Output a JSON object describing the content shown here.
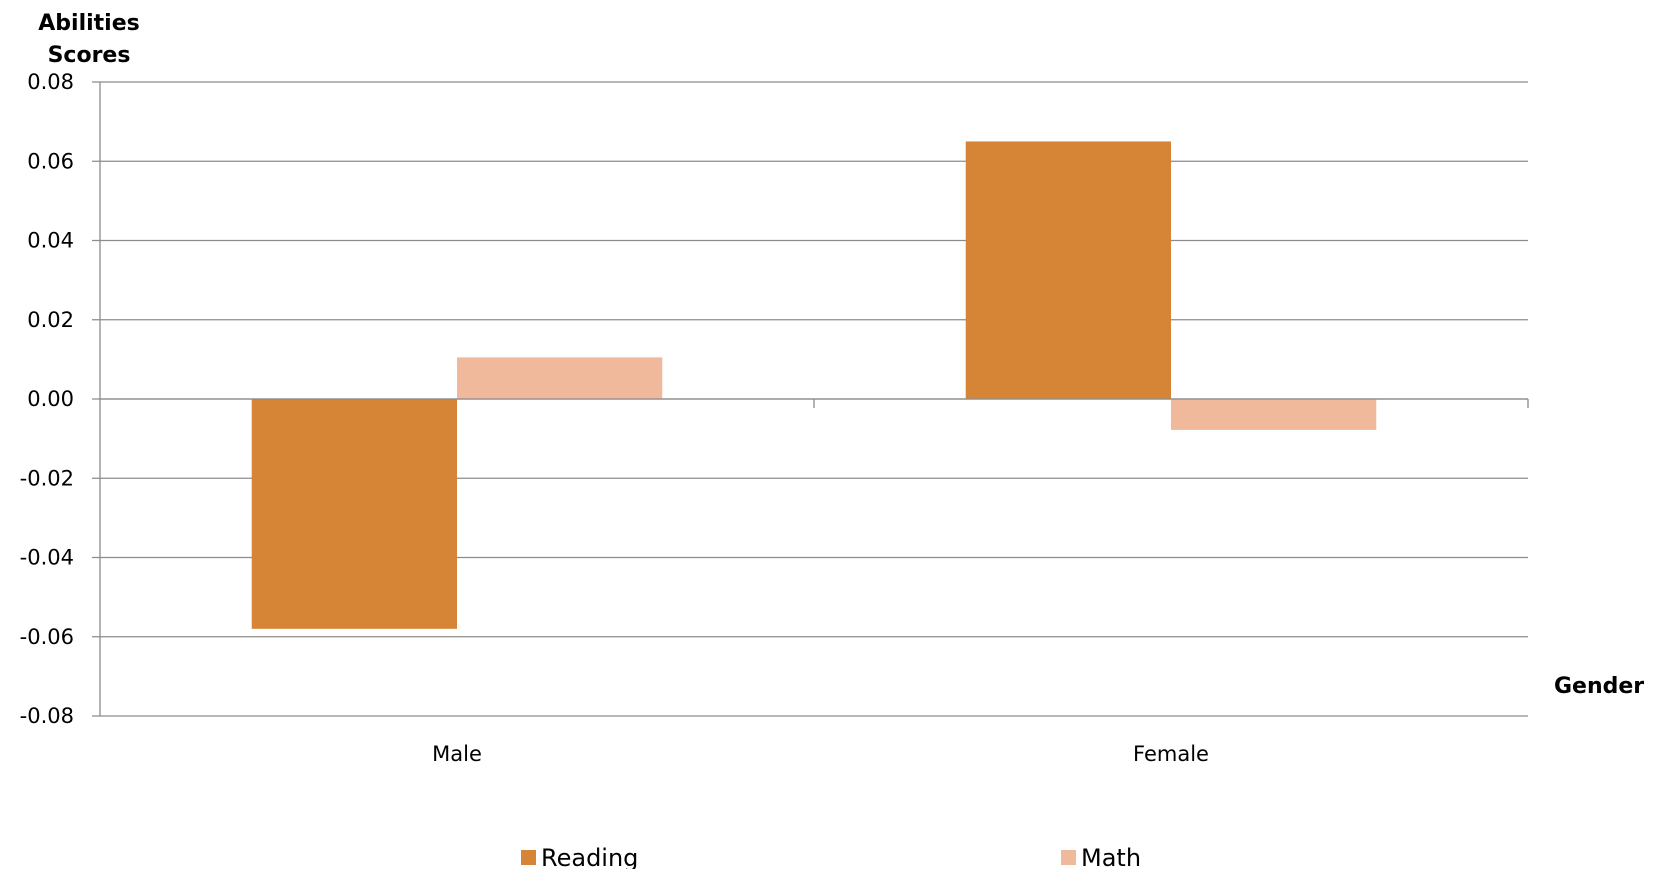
{
  "chart_data": {
    "type": "bar",
    "title": "",
    "ylabel": "Abilities Scores",
    "ylabel_lines": [
      "Abilities",
      "Scores"
    ],
    "xlabel": "Gender",
    "categories": [
      "Male",
      "Female"
    ],
    "series": [
      {
        "name": "Reading",
        "color": "#d58535",
        "values": [
          -0.058,
          0.065
        ]
      },
      {
        "name": "Math",
        "color": "#f1b99b",
        "values": [
          0.0105,
          -0.0078
        ]
      }
    ],
    "ylim": [
      -0.08,
      0.08
    ],
    "yticks": [
      0.08,
      0.06,
      0.04,
      0.02,
      0.0,
      -0.02,
      -0.04,
      -0.06,
      -0.08
    ],
    "ytick_labels": [
      "0.08",
      "0.06",
      "0.04",
      "0.02",
      "0.00",
      "-0.02",
      "-0.04",
      "-0.06",
      "-0.08"
    ],
    "grid": true,
    "legend_position": "bottom"
  }
}
